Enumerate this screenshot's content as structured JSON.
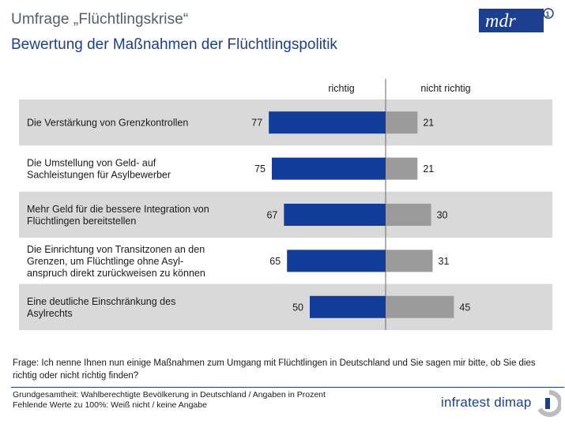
{
  "header": {
    "title": "Umfrage „Flüchtlingskrise“",
    "subtitle": "Bewertung der Maßnahmen der Flüchtlingspolitik",
    "logo_text": "mdr"
  },
  "chart_data": {
    "type": "bar",
    "orientation": "horizontal-diverging",
    "categories": [
      [
        "Die Verstärkung von Grenzkontrollen"
      ],
      [
        "Die Umstellung von Geld- auf",
        "Sachleistungen für Asylbewerber"
      ],
      [
        "Mehr Geld für die bessere Integration von",
        "Flüchtlingen bereitstellen"
      ],
      [
        "Die Einrichtung von Transitzonen an den",
        "Grenzen, um Flüchtlinge ohne Asyl-",
        "anspruch direkt zurückweisen zu können"
      ],
      [
        "Eine deutliche Einschränkung des",
        "Asylrechts"
      ]
    ],
    "series": [
      {
        "name": "richtig",
        "values": [
          77,
          75,
          67,
          65,
          50
        ],
        "color": "#123c9a"
      },
      {
        "name": "nicht richtig",
        "values": [
          21,
          21,
          30,
          31,
          45
        ],
        "color": "#9b9b9b"
      }
    ],
    "xlim": [
      0,
      100
    ],
    "row_colors": [
      "#d9d9d9",
      "#ffffff"
    ]
  },
  "footer": {
    "question": "Frage: Ich nenne Ihnen nun einige Maßnahmen zum Umgang mit Flüchtlingen in Deutschland und Sie sagen mir bitte, ob Sie dies richtig oder nicht richtig finden?",
    "base_line1": "Grundgesamtheit: Wahlberechtigte Bevölkerung in Deutschland / Angaben in Prozent",
    "base_line2": "Fehlende Werte zu 100%: Weiß nicht / keine Angabe",
    "brand": "infratest dimap"
  }
}
